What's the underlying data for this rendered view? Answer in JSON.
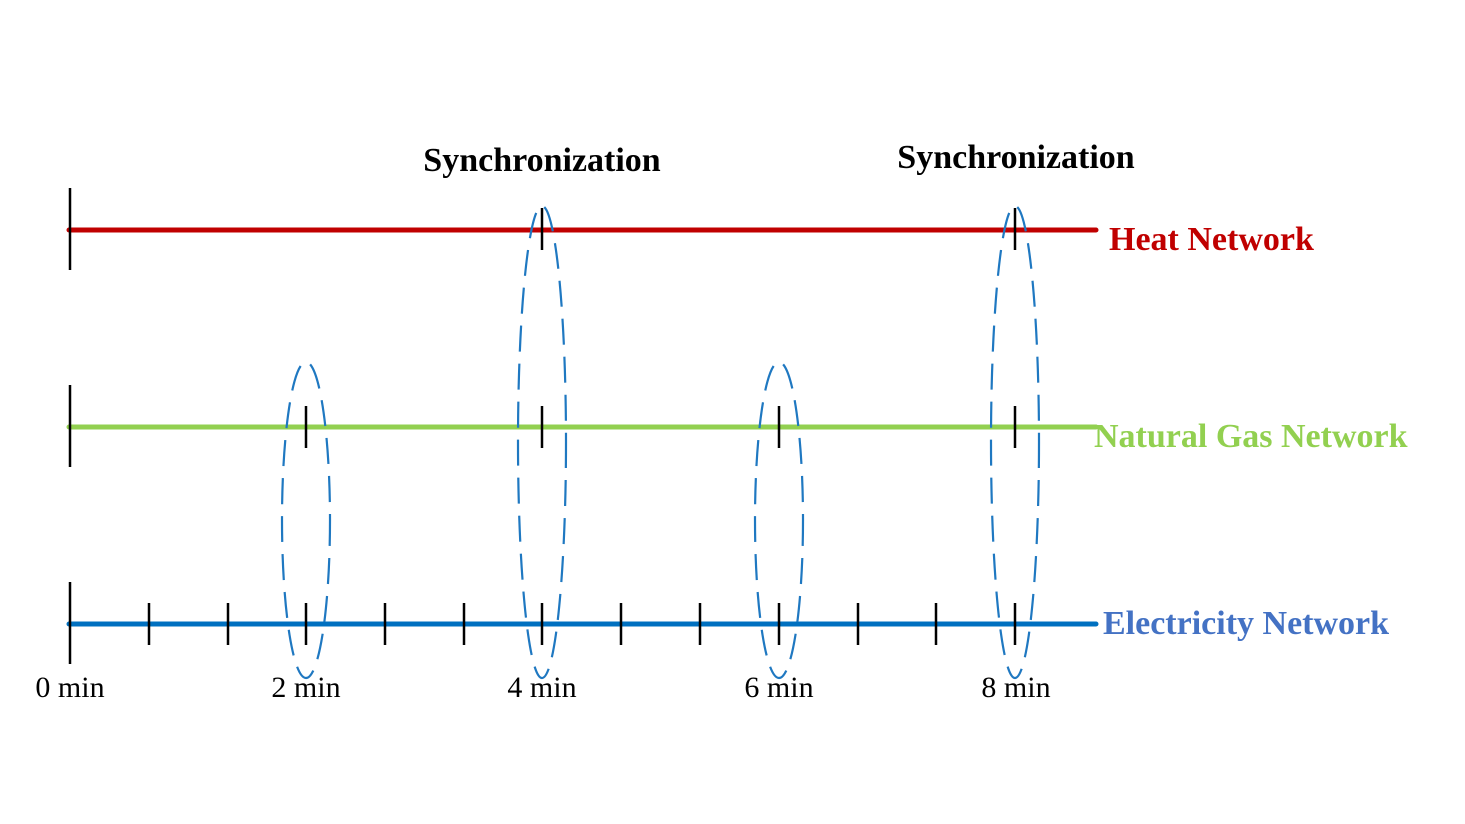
{
  "diagram": {
    "sync_labels": [
      "Synchronization",
      "Synchronization"
    ],
    "networks": {
      "heat": {
        "label": "Heat Network",
        "color": "#c00000",
        "step_minutes": 4
      },
      "gas": {
        "label": "Natural Gas Network",
        "color": "#92d050",
        "step_minutes": 2
      },
      "electricity": {
        "label": "Electricity Network",
        "color": "#0070c0",
        "label_color": "#4472c4",
        "step_minutes": 0.6667
      }
    },
    "time_axis": {
      "labels": [
        "0 min",
        "2 min",
        "4 min",
        "6 min",
        "8 min"
      ]
    },
    "synchronization_points_minutes": [
      {
        "time": 2,
        "networks": [
          "gas",
          "electricity"
        ]
      },
      {
        "time": 4,
        "networks": [
          "heat",
          "gas",
          "electricity"
        ]
      },
      {
        "time": 6,
        "networks": [
          "gas",
          "electricity"
        ]
      },
      {
        "time": 8,
        "networks": [
          "heat",
          "gas",
          "electricity"
        ]
      }
    ],
    "ellipse_color": "#1f78c1"
  }
}
